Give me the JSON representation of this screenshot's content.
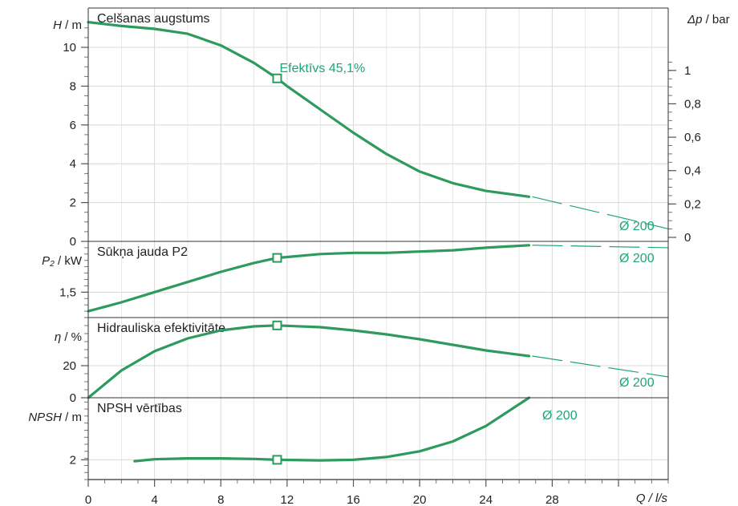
{
  "chart_data": [
    {
      "type": "line",
      "title": "Celšanas augstums",
      "ylabel_var": "H",
      "ylabel_unit": " / m",
      "ylim": [
        0,
        11.2
      ],
      "yticks": [
        0,
        2,
        4,
        6,
        8,
        10
      ],
      "ytick_labels": [
        "0",
        "2",
        "4",
        "6",
        "8",
        "10"
      ],
      "y2label_var": "Δp",
      "y2label_unit": "  / bar",
      "y2lim": [
        0,
        1.1
      ],
      "y2ticks": [
        0,
        0.2,
        0.4,
        0.6,
        0.8,
        1
      ],
      "y2tick_labels": [
        "0",
        "0,2",
        "0,4",
        "0,6",
        "0,8",
        "1"
      ],
      "series": [
        {
          "name": "Ø 200",
          "x": [
            0,
            2,
            4,
            6,
            8,
            10,
            11.4,
            12,
            14,
            16,
            18,
            20,
            22,
            24,
            26.6
          ],
          "y": [
            11.3,
            11.1,
            10.95,
            10.7,
            10.1,
            9.2,
            8.4,
            8.0,
            6.8,
            5.6,
            4.5,
            3.6,
            3.0,
            2.6,
            2.3
          ]
        }
      ],
      "extrapolation": {
        "x": [
          26.6,
          35
        ],
        "y": [
          2.3,
          0.65
        ]
      },
      "marker": {
        "x": 11.4,
        "y": 8.4
      },
      "annotation": "Efektīvs  45,1%",
      "series_label": "Ø 200",
      "grid": true
    },
    {
      "type": "line",
      "title": "Sūkņa jauda P2",
      "ylabel_var": "P₂",
      "ylabel_unit": " / kW",
      "ylim": [
        1.3,
        1.9
      ],
      "yticks": [
        1.5
      ],
      "ytick_labels": [
        "1,5"
      ],
      "series": [
        {
          "name": "Ø 200",
          "x": [
            0,
            2,
            4,
            6,
            8,
            10,
            11.4,
            14,
            16,
            18,
            20,
            22,
            24,
            26.6
          ],
          "y": [
            1.35,
            1.42,
            1.5,
            1.58,
            1.66,
            1.73,
            1.77,
            1.8,
            1.81,
            1.81,
            1.82,
            1.83,
            1.85,
            1.87
          ]
        }
      ],
      "extrapolation": {
        "x": [
          26.6,
          35
        ],
        "y": [
          1.87,
          1.85
        ]
      },
      "marker": {
        "x": 11.4,
        "y": 1.77
      },
      "series_label": "Ø 200",
      "grid": true
    },
    {
      "type": "line",
      "title": "Hidrauliska efektivitāte",
      "ylabel_var": "η",
      "ylabel_unit": " / %",
      "ylim": [
        0,
        50
      ],
      "yticks": [
        0,
        20
      ],
      "ytick_labels": [
        "0",
        "20"
      ],
      "series": [
        {
          "name": "Ø 200",
          "x": [
            0,
            2,
            4,
            6,
            8,
            10,
            11.4,
            14,
            16,
            18,
            20,
            22,
            24,
            26.6
          ],
          "y": [
            0,
            17,
            29,
            37,
            42,
            44.5,
            45.1,
            44,
            42,
            39.5,
            36.5,
            33,
            29.5,
            26
          ]
        }
      ],
      "extrapolation": {
        "x": [
          26.6,
          35
        ],
        "y": [
          26,
          13
        ]
      },
      "marker": {
        "x": 11.4,
        "y": 45.1
      },
      "series_label": "Ø 200",
      "grid": true
    },
    {
      "type": "line",
      "title": "NPSH vērtības",
      "ylabel_var": "NPSH",
      "ylabel_unit": "  / m",
      "ylim": [
        1.3,
        4.2
      ],
      "yticks": [
        2
      ],
      "ytick_labels": [
        "2"
      ],
      "series": [
        {
          "name": "Ø 200",
          "x": [
            2.8,
            4,
            6,
            8,
            10,
            11.4,
            14,
            16,
            18,
            20,
            22,
            24,
            26.6
          ],
          "y": [
            1.95,
            2.02,
            2.05,
            2.05,
            2.03,
            2.0,
            1.98,
            2.0,
            2.1,
            2.3,
            2.65,
            3.2,
            4.2
          ]
        }
      ],
      "marker": {
        "x": 11.4,
        "y": 2.0
      },
      "series_label": "Ø 200",
      "grid": true
    }
  ],
  "x_axis": {
    "label": "Q  / l/s",
    "xlim": [
      0,
      35
    ],
    "ticks": [
      0,
      4,
      8,
      12,
      16,
      20,
      24,
      28
    ],
    "tick_labels": [
      "0",
      "4",
      "8",
      "12",
      "16",
      "20",
      "24",
      "28"
    ]
  },
  "colors": {
    "curve": "#2e9a5e",
    "accent_text": "#1fa57a",
    "grid": "#d9d9d9",
    "axis": "#555555"
  }
}
